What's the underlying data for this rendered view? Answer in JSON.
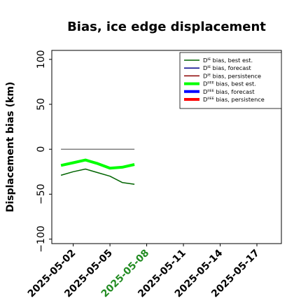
{
  "chart_data": {
    "type": "line",
    "title": "Bias, ice edge displacement",
    "xlabel": "",
    "ylabel": "Displacement bias (km)",
    "xlim": [
      "2025-04-30",
      "2025-05-19"
    ],
    "ylim": [
      -105,
      110
    ],
    "yticks": [
      100,
      50,
      0,
      -50,
      -100
    ],
    "ytick_labels": [
      "100",
      "50",
      "0",
      "−50",
      "−100"
    ],
    "xticks": [
      "2025-05-02",
      "2025-05-05",
      "2025-05-08",
      "2025-05-11",
      "2025-05-14",
      "2025-05-17"
    ],
    "highlight_tick": "2025-05-08",
    "highlight_color": "#228B22",
    "grid": false,
    "legend_position": "top-right",
    "series": [
      {
        "name": "Dᴵᴱ bias, best est.",
        "color": "#006400",
        "width": 1.5,
        "x": [
          "2025-05-01",
          "2025-05-02",
          "2025-05-03",
          "2025-05-04",
          "2025-05-05",
          "2025-05-06",
          "2025-05-07"
        ],
        "y": [
          -29,
          -25,
          -22,
          -26,
          -30,
          -37,
          -39
        ]
      },
      {
        "name": "Dᴵᴱ bias, forecast",
        "color": "#00008B",
        "width": 1.5,
        "x": [],
        "y": []
      },
      {
        "name": "Dᴵᴱ bias, persistence",
        "color": "#8B0000",
        "width": 1.5,
        "x": [],
        "y": []
      },
      {
        "name": "Dᴵᴵᴱᴱ bias, best est.",
        "color": "#00FF00",
        "width": 4,
        "x": [
          "2025-05-01",
          "2025-05-02",
          "2025-05-03",
          "2025-05-04",
          "2025-05-05",
          "2025-05-06",
          "2025-05-07"
        ],
        "y": [
          -18,
          -15,
          -12,
          -16,
          -21,
          -20,
          -17
        ]
      },
      {
        "name": "Dᴵᴵᴱᴱ bias, forecast",
        "color": "#0000FF",
        "width": 4,
        "x": [],
        "y": []
      },
      {
        "name": "Dᴵᴵᴱᴱ bias, persistence",
        "color": "#FF0000",
        "width": 4,
        "x": [],
        "y": []
      },
      {
        "name": "",
        "color": "#808080",
        "width": 1.5,
        "legend": false,
        "x": [
          "2025-05-01",
          "2025-05-07"
        ],
        "y": [
          0,
          0
        ]
      }
    ]
  }
}
